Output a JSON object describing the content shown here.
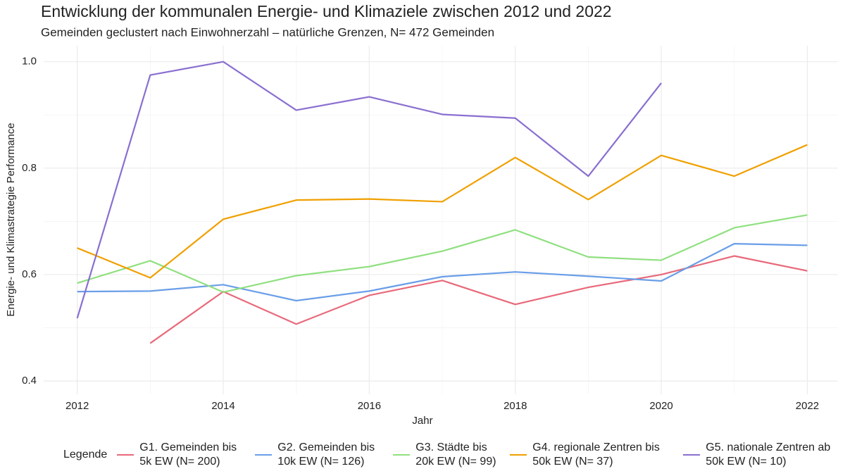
{
  "chart_data": {
    "type": "line",
    "title": "Entwicklung der kommunalen Energie- und Klimaziele zwischen 2012 und 2022",
    "subtitle": "Gemeinden geclustert nach Einwohnerzahl – natürliche Grenzen, N= 472 Gemeinden",
    "x_label": "Jahr",
    "y_label": "Energie- und Klimastrategie Performance",
    "legend_title": "Legende",
    "legend_position": "bottom",
    "grid": true,
    "x": [
      2012,
      2013,
      2014,
      2015,
      2016,
      2017,
      2018,
      2019,
      2020,
      2021,
      2022
    ],
    "xlim": [
      2011.54,
      2022.42
    ],
    "xticks": [
      2012,
      2014,
      2016,
      2018,
      2020,
      2022
    ],
    "ylim": [
      0.375,
      1.03
    ],
    "yticks": [
      0.4,
      0.6,
      0.8,
      {
        "value": 1,
        "label": "1.0"
      }
    ],
    "series": [
      {
        "name": "G1. Gemeinden bis 5k EW (N= 200)",
        "color": "#e8697a",
        "values": [
          null,
          0.471,
          0.568,
          0.507,
          0.561,
          0.589,
          0.544,
          0.576,
          0.6,
          0.635,
          0.607
        ]
      },
      {
        "name": "G2. Gemeinden bis 10k EW (N= 126)",
        "color": "#6a9ee8",
        "values": [
          0.568,
          0.569,
          0.581,
          0.551,
          0.569,
          0.596,
          0.605,
          0.597,
          0.588,
          0.658,
          0.655
        ]
      },
      {
        "name": "G3. Städte bis 20k EW (N= 99)",
        "color": "#90e080",
        "values": [
          0.584,
          0.626,
          0.567,
          0.598,
          0.615,
          0.644,
          0.684,
          0.633,
          0.627,
          0.688,
          0.712
        ]
      },
      {
        "name": "G4. regionale Zentren bis 50k EW (N= 37)",
        "color": "#f0a000",
        "values": [
          0.65,
          0.594,
          0.704,
          0.74,
          0.742,
          0.737,
          0.82,
          0.741,
          0.824,
          0.785,
          0.844
        ]
      },
      {
        "name": "G5. nationale Zentren ab 50k EW (N= 10)",
        "color": "#8a6fd0",
        "values": [
          0.518,
          0.975,
          1.0,
          0.909,
          0.934,
          0.901,
          0.894,
          0.785,
          0.96,
          null,
          null
        ]
      }
    ]
  }
}
